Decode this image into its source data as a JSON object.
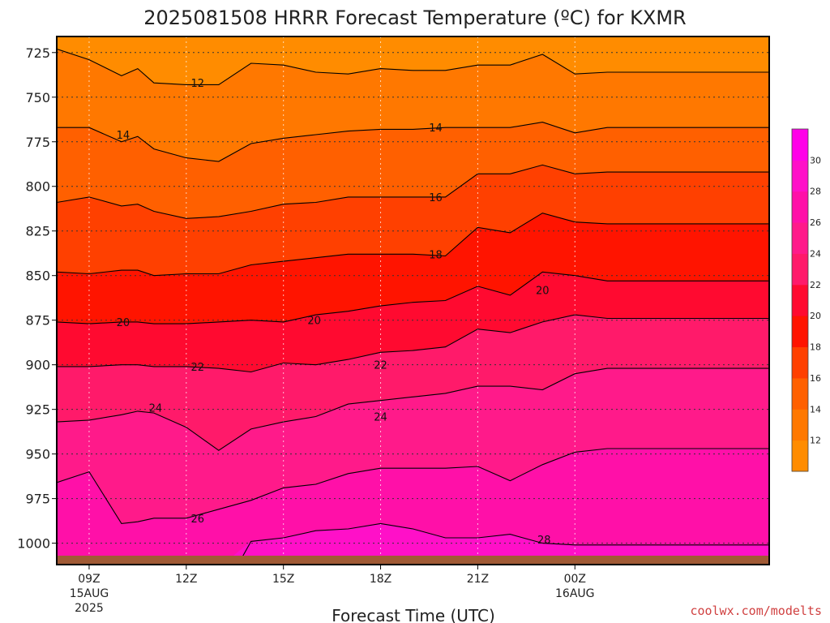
{
  "chart_data": {
    "type": "contour-filled",
    "title": "2025081508 HRRR Forecast Temperature (ºC) for KXMR",
    "xlabel": "Forecast Time (UTC)",
    "ylabel": "",
    "y_axis": {
      "unit": "hPa",
      "inverted": true,
      "ylim": [
        1012,
        716
      ],
      "ticks": [
        725,
        750,
        775,
        800,
        825,
        850,
        875,
        900,
        925,
        950,
        975,
        1000
      ]
    },
    "x_axis": {
      "unit": "forecast hour",
      "xlim": [
        0,
        22
      ],
      "ticks": [
        {
          "x": 1,
          "lines": [
            "09Z",
            "15AUG",
            "2025"
          ]
        },
        {
          "x": 4,
          "lines": [
            "12Z"
          ]
        },
        {
          "x": 7,
          "lines": [
            "15Z"
          ]
        },
        {
          "x": 10,
          "lines": [
            "18Z"
          ]
        },
        {
          "x": 13,
          "lines": [
            "21Z"
          ]
        },
        {
          "x": 16,
          "lines": [
            "00Z",
            "16AUG"
          ]
        }
      ]
    },
    "grid": true,
    "colorbar": {
      "placement": "right",
      "levels": [
        12,
        14,
        16,
        18,
        20,
        22,
        24,
        26,
        28,
        30
      ],
      "tick_labels": [
        "12",
        "14",
        "16",
        "18",
        "20",
        "22",
        "24",
        "26",
        "28",
        "30"
      ],
      "colors": [
        "#ff8c00",
        "#ff7800",
        "#ff6000",
        "#ff4000",
        "#ff1400",
        "#ff0a30",
        "#ff1a6a",
        "#ff1a8a",
        "#ff10a8",
        "#ff10c8",
        "#ff00e8"
      ]
    },
    "x": [
      0,
      1,
      2,
      2.5,
      3,
      4,
      5,
      6,
      7,
      8,
      9,
      10,
      11,
      12,
      13,
      14,
      15,
      16,
      17,
      18
    ],
    "contours": [
      {
        "level": 12,
        "p": [
          723,
          729,
          738,
          734,
          742,
          743,
          743,
          731,
          732,
          736,
          737,
          734,
          735,
          735,
          732,
          732,
          726,
          737,
          736,
          736
        ]
      },
      {
        "level": 14,
        "p": [
          767,
          767,
          775,
          772,
          779,
          784,
          786,
          776,
          773,
          771,
          769,
          768,
          768,
          767,
          767,
          767,
          764,
          770,
          767,
          767
        ]
      },
      {
        "level": 16,
        "p": [
          809,
          806,
          811,
          810,
          814,
          818,
          817,
          814,
          810,
          809,
          806,
          806,
          806,
          806,
          793,
          793,
          788,
          793,
          792,
          792
        ]
      },
      {
        "level": 18,
        "p": [
          848,
          849,
          847,
          847,
          850,
          849,
          849,
          844,
          842,
          840,
          838,
          838,
          838,
          839,
          823,
          826,
          815,
          820,
          821,
          821
        ]
      },
      {
        "level": 20,
        "p": [
          876,
          877,
          876,
          876,
          877,
          877,
          876,
          875,
          876,
          872,
          870,
          867,
          865,
          864,
          856,
          861,
          848,
          850,
          853,
          853
        ]
      },
      {
        "level": 22,
        "p": [
          901,
          901,
          900,
          900,
          901,
          901,
          902,
          904,
          899,
          900,
          897,
          893,
          892,
          890,
          880,
          882,
          876,
          872,
          874,
          874
        ]
      },
      {
        "level": 24,
        "p": [
          932,
          931,
          928,
          926,
          927,
          935,
          948,
          936,
          932,
          929,
          922,
          920,
          918,
          916,
          912,
          912,
          914,
          905,
          902,
          902
        ]
      },
      {
        "level": 26,
        "p": [
          966,
          960,
          989,
          988,
          986,
          986,
          981,
          976,
          969,
          967,
          961,
          958,
          958,
          958,
          957,
          965,
          956,
          949,
          947,
          947
        ]
      },
      {
        "level": 28,
        "p": [
          null,
          null,
          null,
          null,
          null,
          null,
          null,
          999,
          997,
          993,
          992,
          989,
          992,
          997,
          997,
          995,
          1000,
          1001,
          1001,
          1001
        ]
      }
    ],
    "contour_labels": [
      {
        "text": "12",
        "x": 4.35,
        "p": 742
      },
      {
        "text": "14",
        "x": 2.05,
        "p": 771
      },
      {
        "text": "14",
        "x": 11.7,
        "p": 767
      },
      {
        "text": "16",
        "x": 11.7,
        "p": 806
      },
      {
        "text": "18",
        "x": 11.7,
        "p": 838
      },
      {
        "text": "20",
        "x": 2.05,
        "p": 876
      },
      {
        "text": "20",
        "x": 7.95,
        "p": 875
      },
      {
        "text": "20",
        "x": 15.0,
        "p": 858
      },
      {
        "text": "22",
        "x": 4.35,
        "p": 901
      },
      {
        "text": "22",
        "x": 10.0,
        "p": 900
      },
      {
        "text": "24",
        "x": 3.05,
        "p": 924
      },
      {
        "text": "24",
        "x": 10.0,
        "p": 929
      },
      {
        "text": "26",
        "x": 4.35,
        "p": 986
      },
      {
        "text": "28",
        "x": 15.05,
        "p": 998
      }
    ],
    "ground": {
      "color": "#a05a35",
      "p_top": 1007
    }
  },
  "credit": "coolwx.com/modelts"
}
